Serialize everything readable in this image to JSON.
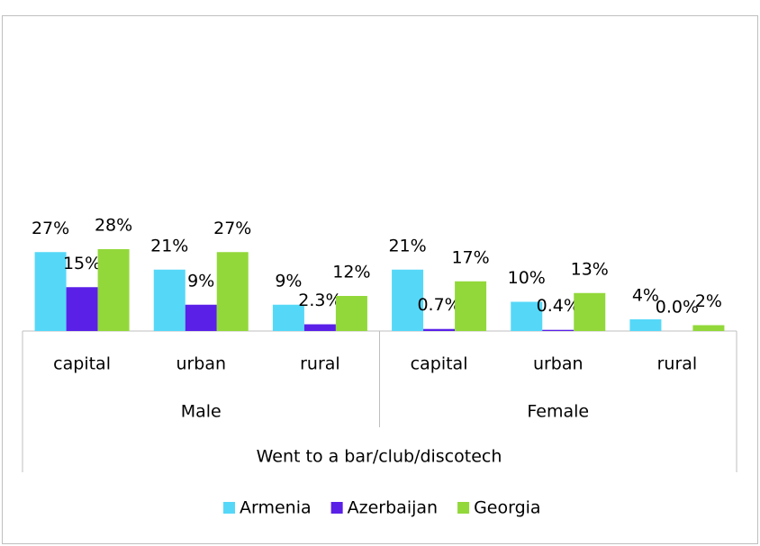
{
  "chart_data": {
    "type": "bar",
    "title": "Went to a bar/club/discotech",
    "category_groups": [
      {
        "label": "Male",
        "categories": [
          "capital",
          "urban",
          "rural"
        ]
      },
      {
        "label": "Female",
        "categories": [
          "capital",
          "urban",
          "rural"
        ]
      }
    ],
    "series": [
      {
        "name": "Armenia",
        "color": "#55d8f8",
        "values": [
          27,
          21,
          9,
          21,
          10,
          4
        ],
        "value_labels": [
          "27%",
          "21%",
          "9%",
          "21%",
          "10%",
          "4%"
        ]
      },
      {
        "name": "Azerbaijan",
        "color": "#5a20e8",
        "values": [
          15,
          9,
          2.3,
          0.7,
          0.4,
          0.0
        ],
        "value_labels": [
          "15%",
          "9%",
          "2.3%",
          "0.7%",
          "0.4%",
          "0.0%"
        ]
      },
      {
        "name": "Georgia",
        "color": "#92d83a",
        "values": [
          28,
          27,
          12,
          17,
          13,
          2
        ],
        "value_labels": [
          "28%",
          "27%",
          "12%",
          "17%",
          "13%",
          "2%"
        ]
      }
    ],
    "ylim": [
      0,
      100
    ],
    "legend": "bottom"
  }
}
